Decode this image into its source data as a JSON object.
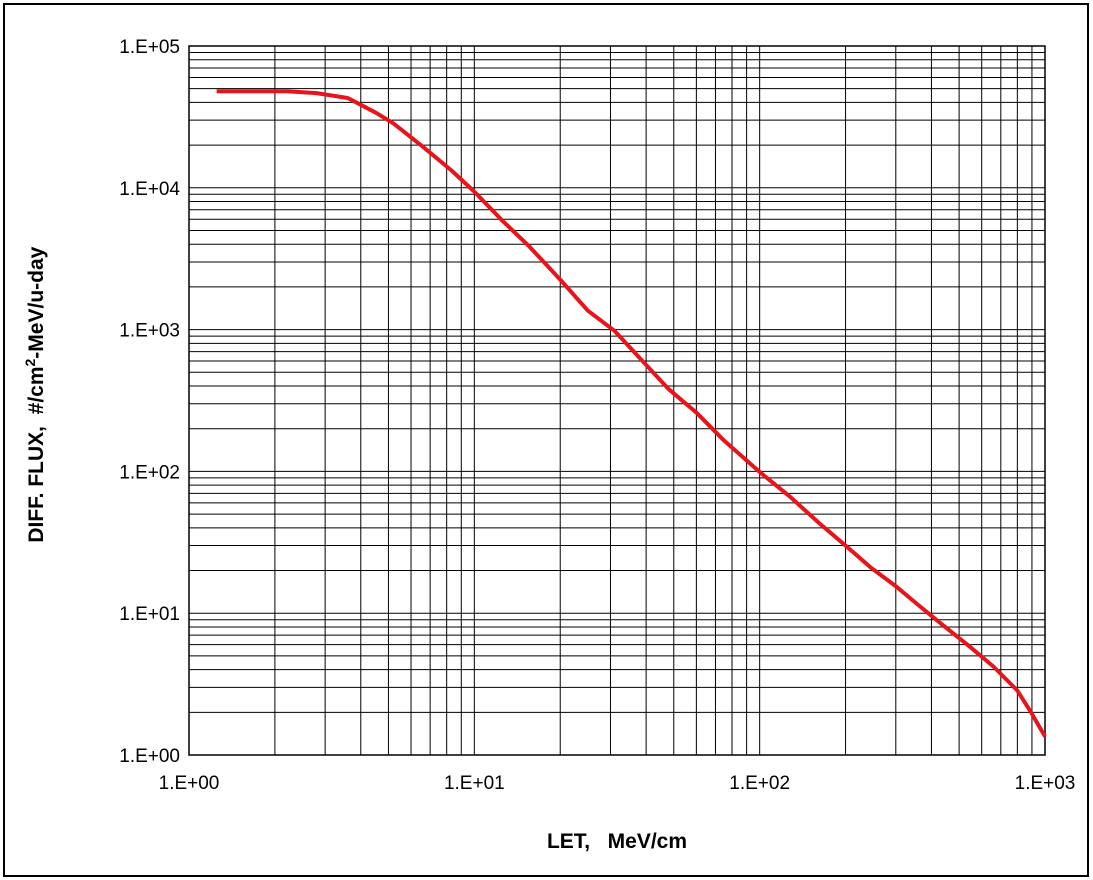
{
  "chart_data": {
    "type": "line",
    "xlabel": "LET,   MeV/cm",
    "ylabel": {
      "prefix": "DIFF. FLUX,  #/cm",
      "superscript": "2",
      "suffix": "-MeV/u-day"
    },
    "xscale": "log",
    "yscale": "log",
    "xlim": [
      1,
      1000
    ],
    "ylim": [
      1,
      100000
    ],
    "xticks": [
      {
        "value": 1,
        "label": "1.E+00"
      },
      {
        "value": 10,
        "label": "1.E+01"
      },
      {
        "value": 100,
        "label": "1.E+02"
      },
      {
        "value": 1000,
        "label": "1.E+03"
      }
    ],
    "yticks": [
      {
        "value": 1,
        "label": "1.E+00"
      },
      {
        "value": 10,
        "label": "1.E+01"
      },
      {
        "value": 100,
        "label": "1.E+02"
      },
      {
        "value": 1000,
        "label": "1.E+03"
      },
      {
        "value": 10000,
        "label": "1.E+04"
      },
      {
        "value": 100000,
        "label": "1.E+05"
      }
    ],
    "grid": true,
    "grid_minor": true,
    "legend": "none",
    "series": [
      {
        "color": "#e8141c",
        "x": [
          1.25,
          2.2,
          2.8,
          3.6,
          4.5,
          5.2,
          6.6,
          8.3,
          10.0,
          12.5,
          15.6,
          20.0,
          25.0,
          31.0,
          38.0,
          48.0,
          60.0,
          75.0,
          100.0,
          127.0,
          162.0,
          200.0,
          245.0,
          300.0,
          360.0,
          440.0,
          540.0,
          660.0,
          800.0,
          900.0,
          1000.0
        ],
        "y": [
          48000,
          48000,
          46500,
          43000,
          34000,
          28500,
          19500,
          13300,
          9400,
          5900,
          3850,
          2250,
          1360,
          980,
          630,
          380,
          260,
          165,
          99,
          67,
          43,
          30,
          21,
          15.5,
          11.4,
          8.2,
          5.9,
          4.2,
          2.85,
          1.95,
          1.35
        ]
      }
    ]
  }
}
